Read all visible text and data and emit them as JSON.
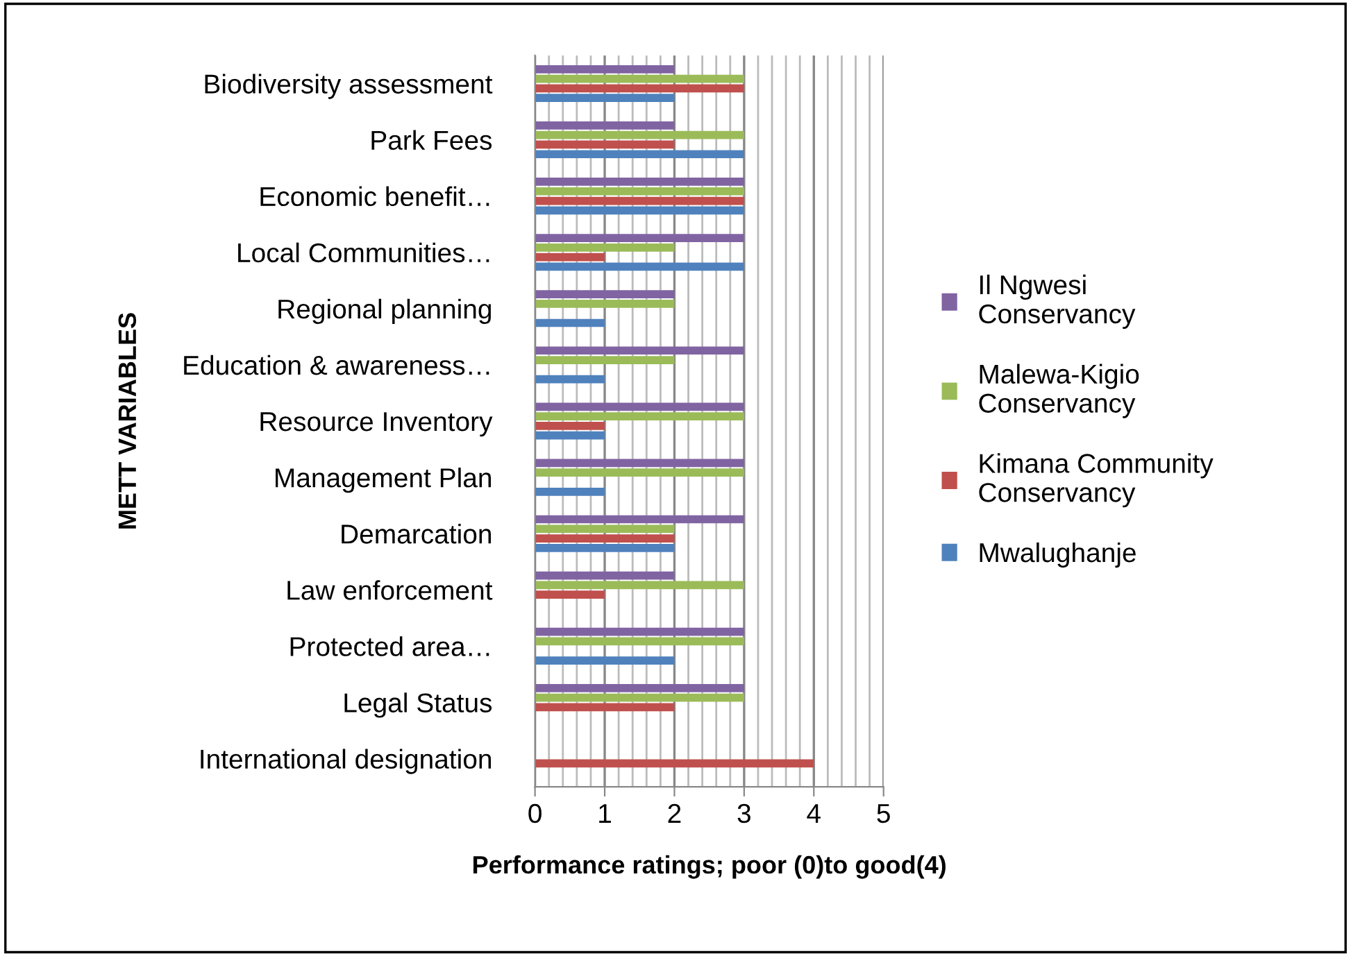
{
  "chart_data": {
    "type": "bar",
    "orientation": "horizontal",
    "xlabel": "Performance ratings; poor (0)to good(4)",
    "ylabel": "METT VARIABLES",
    "categories": [
      "Biodiversity assessment",
      "Park Fees",
      "Economic benefit…",
      "Local Communities…",
      "Regional planning",
      "Education & awareness…",
      "Resource Inventory",
      "Management Plan",
      "Demarcation",
      "Law enforcement",
      "Protected area…",
      "Legal Status",
      "International designation"
    ],
    "series": [
      {
        "name": "Mwalughanje",
        "color": "#4f81bd",
        "values": [
          2,
          3,
          3,
          3,
          1,
          1,
          1,
          1,
          2,
          null,
          2,
          null,
          null
        ]
      },
      {
        "name": "Kimana Community Conservancy",
        "color": "#c0504d",
        "values": [
          3,
          2,
          3,
          1,
          null,
          null,
          1,
          null,
          2,
          1,
          null,
          2,
          4
        ]
      },
      {
        "name": "Malewa-Kigio Conservancy",
        "color": "#9bbb59",
        "values": [
          3,
          3,
          3,
          2,
          2,
          2,
          3,
          3,
          2,
          3,
          3,
          3,
          null
        ]
      },
      {
        "name": "Il Ngwesi Conservancy",
        "color": "#8064a2",
        "values": [
          2,
          2,
          3,
          3,
          2,
          3,
          3,
          3,
          3,
          2,
          3,
          3,
          null
        ]
      }
    ],
    "xlim": [
      0,
      5
    ],
    "xticks": [
      0,
      1,
      2,
      3,
      4,
      5
    ],
    "grid": "x",
    "legend": "right"
  }
}
